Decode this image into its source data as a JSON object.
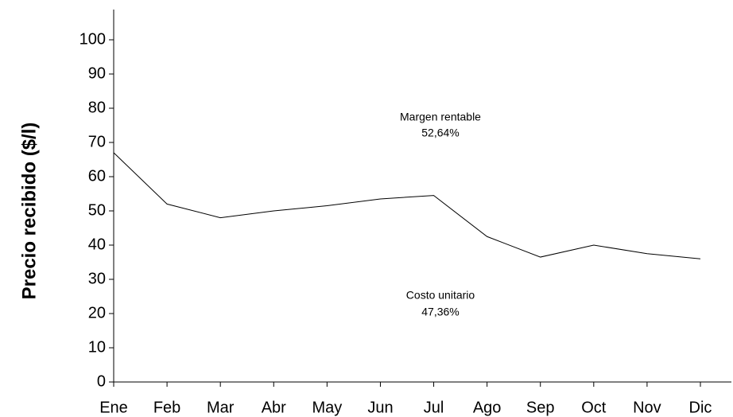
{
  "chart_data": {
    "type": "line",
    "y_label": "Precio recibido ($/l)",
    "annotations": [
      "Margen rentable",
      "52,64%",
      "Costo unitario",
      "47,36%"
    ],
    "categories": [
      "Ene",
      "Feb",
      "Mar",
      "Abr",
      "May",
      "Jun",
      "Jul",
      "Ago",
      "Sep",
      "Oct",
      "Nov",
      "Dic"
    ],
    "values": [
      67,
      52,
      48,
      50,
      51.5,
      53.5,
      54.5,
      42.5,
      36.5,
      40,
      37.5,
      36
    ],
    "color": "#000000",
    "ylim": [
      0,
      100
    ],
    "yticks": [
      0,
      10,
      20,
      30,
      40,
      50,
      60,
      70,
      80,
      90,
      100
    ],
    "grid": false
  }
}
